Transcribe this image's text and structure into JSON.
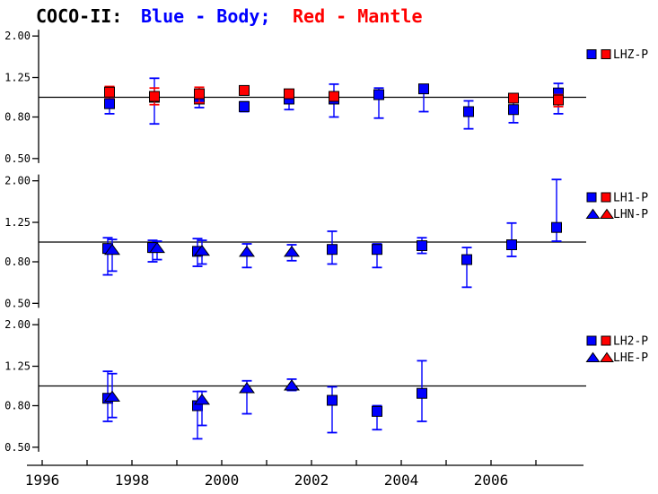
{
  "title": {
    "project": "COCO-II:",
    "blue_part": "Blue - Body;",
    "red_part": "Red - Mantle"
  },
  "colors": {
    "body": "#0000ff",
    "mantle": "#ff0000",
    "axis": "#000000",
    "background": "#ffffff"
  },
  "chart_data": {
    "type": "scatter",
    "title": "COCO-II: Blue - Body; Red - Mantle",
    "x_axis": {
      "tick_years": [
        1996,
        1997,
        1998,
        1999,
        2000,
        2001,
        2002,
        2003,
        2004,
        2005,
        2006,
        2007
      ],
      "label_values": [
        1996,
        1998,
        2000,
        2002,
        2004,
        2006
      ],
      "labels": [
        "1996",
        "1998",
        "2000",
        "2002",
        "2004",
        "2006"
      ],
      "xlim": [
        1995.66,
        2008.06
      ]
    },
    "y_axis": {
      "scale": "log",
      "tick_labels": [
        "2.00",
        "1.25",
        "0.80",
        "0.50"
      ],
      "tick_values": [
        2.0,
        1.25,
        0.8,
        0.5
      ],
      "ylim": [
        0.5,
        2.0
      ],
      "reference_value": 1.0
    },
    "panels": [
      {
        "name": "vertical-component",
        "legend": [
          {
            "label": "LHZ-P",
            "marker": "square"
          }
        ],
        "series": [
          {
            "name": "Body LHZ-P",
            "component": "body",
            "marker": "square",
            "dx": 0,
            "points": [
              [
                1997.5,
                0.93,
                0.83,
                1.0
              ],
              [
                1998.5,
                1.0,
                0.74,
                1.24
              ],
              [
                1999.5,
                0.98,
                0.89,
                1.07
              ],
              [
                2000.5,
                0.9,
                0.85,
                0.95
              ],
              [
                2001.5,
                0.98,
                0.87,
                1.06
              ],
              [
                2002.5,
                0.98,
                0.8,
                1.16
              ],
              [
                2003.5,
                1.03,
                0.79,
                1.11
              ],
              [
                2004.5,
                1.1,
                0.85,
                1.13
              ],
              [
                2005.5,
                0.85,
                0.7,
                0.96
              ],
              [
                2006.5,
                0.87,
                0.75,
                0.95
              ],
              [
                2007.5,
                1.05,
                0.83,
                1.17
              ]
            ]
          },
          {
            "name": "Mantle LHZ-P",
            "component": "mantle",
            "marker": "square",
            "dx": 0,
            "points": [
              [
                1997.5,
                1.06,
                1.0,
                1.13
              ],
              [
                1998.5,
                1.01,
                0.92,
                1.11
              ],
              [
                1999.5,
                1.04,
                0.94,
                1.12
              ],
              [
                2000.5,
                1.08,
                1.03,
                1.13
              ],
              [
                2001.5,
                1.04,
                0.99,
                1.09
              ],
              [
                2002.5,
                1.01,
                0.96,
                1.06
              ],
              [
                2006.5,
                0.99,
                0.95,
                1.03
              ],
              [
                2007.5,
                0.97,
                0.9,
                1.03
              ]
            ]
          }
        ]
      },
      {
        "name": "horizontal-component-1",
        "legend": [
          {
            "label": "LH1-P",
            "marker": "square"
          },
          {
            "label": "LHN-P",
            "marker": "triangle"
          }
        ],
        "series": [
          {
            "name": "Body LH1-P",
            "component": "body",
            "marker": "square",
            "dx": -2,
            "points": [
              [
                1997.5,
                0.93,
                0.69,
                1.05
              ],
              [
                1998.5,
                0.94,
                0.8,
                1.02
              ],
              [
                1999.5,
                0.9,
                0.76,
                1.04
              ],
              [
                2002.5,
                0.92,
                0.78,
                1.13
              ],
              [
                2003.5,
                0.92,
                0.75,
                0.98
              ],
              [
                2004.5,
                0.96,
                0.88,
                1.05
              ],
              [
                2005.5,
                0.82,
                0.6,
                0.94
              ],
              [
                2006.5,
                0.97,
                0.85,
                1.24
              ],
              [
                2007.5,
                1.18,
                1.01,
                2.03
              ]
            ]
          },
          {
            "name": "Body LHN-P",
            "component": "body",
            "marker": "triangle",
            "dx": 3,
            "points": [
              [
                1997.5,
                0.92,
                0.72,
                1.03
              ],
              [
                1998.5,
                0.94,
                0.82,
                1.01
              ],
              [
                1999.5,
                0.91,
                0.78,
                1.02
              ],
              [
                2000.5,
                0.9,
                0.75,
                0.98
              ],
              [
                2001.5,
                0.9,
                0.81,
                0.97
              ]
            ]
          }
        ]
      },
      {
        "name": "horizontal-component-2",
        "legend": [
          {
            "label": "LH2-P",
            "marker": "square"
          },
          {
            "label": "LHE-P",
            "marker": "triangle"
          }
        ],
        "series": [
          {
            "name": "Body LH2-P",
            "component": "body",
            "marker": "square",
            "dx": -2,
            "points": [
              [
                1997.5,
                0.87,
                0.67,
                1.18
              ],
              [
                1999.5,
                0.8,
                0.55,
                0.94
              ],
              [
                2002.5,
                0.85,
                0.59,
                0.99
              ],
              [
                2003.5,
                0.75,
                0.61,
                0.8
              ],
              [
                2004.5,
                0.92,
                0.67,
                1.33
              ]
            ]
          },
          {
            "name": "Body LHE-P",
            "component": "body",
            "marker": "triangle",
            "dx": 3,
            "points": [
              [
                1997.5,
                0.89,
                0.7,
                1.15
              ],
              [
                1999.5,
                0.86,
                0.64,
                0.94
              ],
              [
                2000.5,
                0.98,
                0.73,
                1.06
              ],
              [
                2001.5,
                1.01,
                0.95,
                1.08
              ]
            ]
          }
        ]
      }
    ]
  }
}
